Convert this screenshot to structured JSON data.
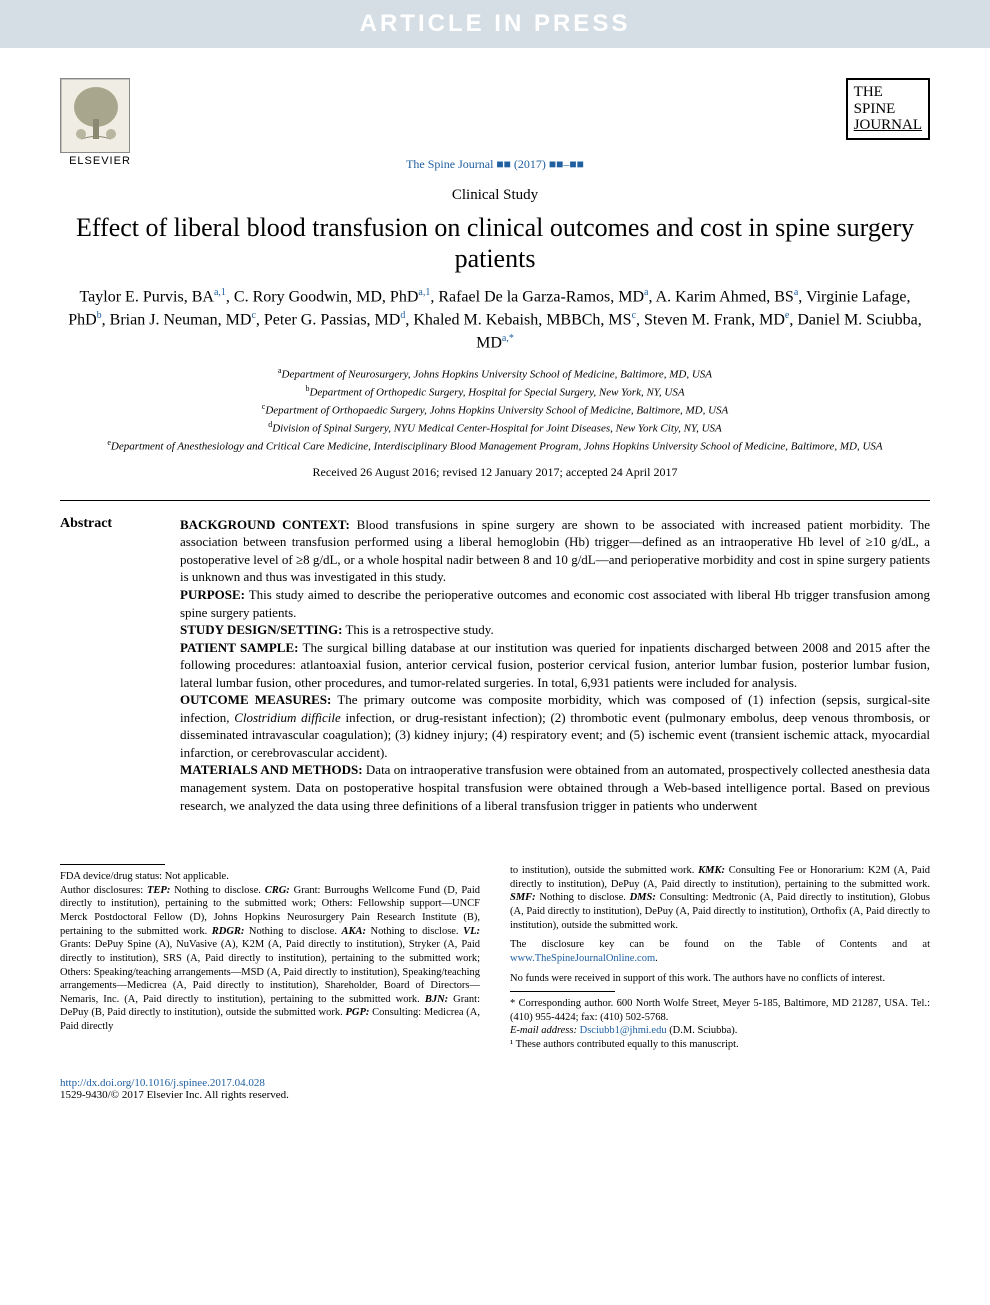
{
  "banner": "ARTICLE IN PRESS",
  "publisher": {
    "name": "ELSEVIER"
  },
  "journal": {
    "logo_lines": [
      "THE",
      "SPINE",
      "JOURNAL"
    ],
    "citation": "The Spine Journal ■■ (2017) ■■–■■"
  },
  "article_type": "Clinical Study",
  "title": "Effect of liberal blood transfusion on clinical outcomes and cost in spine surgery patients",
  "authors_html": "Taylor E. Purvis, BA<sup>a,1</sup>, C. Rory Goodwin, MD, PhD<sup>a,1</sup>, Rafael De la Garza-Ramos, MD<sup>a</sup>, A. Karim Ahmed, BS<sup>a</sup>, Virginie Lafage, PhD<sup>b</sup>, Brian J. Neuman, MD<sup>c</sup>, Peter G. Passias, MD<sup>d</sup>, Khaled M. Kebaish, MBBCh, MS<sup>c</sup>, Steven M. Frank, MD<sup>e</sup>, Daniel M. Sciubba, MD<sup>a,*</sup>",
  "affiliations": [
    {
      "sup": "a",
      "text": "Department of Neurosurgery, Johns Hopkins University School of Medicine, Baltimore, MD, USA"
    },
    {
      "sup": "b",
      "text": "Department of Orthopedic Surgery, Hospital for Special Surgery, New York, NY, USA"
    },
    {
      "sup": "c",
      "text": "Department of Orthopaedic Surgery, Johns Hopkins University School of Medicine, Baltimore, MD, USA"
    },
    {
      "sup": "d",
      "text": "Division of Spinal Surgery, NYU Medical Center-Hospital for Joint Diseases, New York City, NY, USA"
    },
    {
      "sup": "e",
      "text": "Department of Anesthesiology and Critical Care Medicine, Interdisciplinary Blood Management Program, Johns Hopkins University School of Medicine, Baltimore, MD, USA"
    }
  ],
  "dates": "Received 26 August 2016; revised 12 January 2017; accepted 24 April 2017",
  "abstract": {
    "label": "Abstract",
    "sections": [
      {
        "head": "BACKGROUND CONTEXT:",
        "body": "Blood transfusions in spine surgery are shown to be associated with increased patient morbidity. The association between transfusion performed using a liberal hemoglobin (Hb) trigger—defined as an intraoperative Hb level of ≥10 g/dL, a postoperative level of ≥8 g/dL, or a whole hospital nadir between 8 and 10 g/dL—and perioperative morbidity and cost in spine surgery patients is unknown and thus was investigated in this study."
      },
      {
        "head": "PURPOSE:",
        "body": "This study aimed to describe the perioperative outcomes and economic cost associated with liberal Hb trigger transfusion among spine surgery patients."
      },
      {
        "head": "STUDY DESIGN/SETTING:",
        "body": "This is a retrospective study."
      },
      {
        "head": "PATIENT SAMPLE:",
        "body": "The surgical billing database at our institution was queried for inpatients discharged between 2008 and 2015 after the following procedures: atlantoaxial fusion, anterior cervical fusion, posterior cervical fusion, anterior lumbar fusion, posterior lumbar fusion, lateral lumbar fusion, other procedures, and tumor-related surgeries. In total, 6,931 patients were included for analysis."
      },
      {
        "head": "OUTCOME MEASURES:",
        "body": "The primary outcome was composite morbidity, which was composed of (1) infection (sepsis, surgical-site infection, Clostridium difficile infection, or drug-resistant infection); (2) thrombotic event (pulmonary embolus, deep venous thrombosis, or disseminated intravascular coagulation); (3) kidney injury; (4) respiratory event; and (5) ischemic event (transient ischemic attack, myocardial infarction, or cerebrovascular accident)."
      },
      {
        "head": "MATERIALS AND METHODS:",
        "body": "Data on intraoperative transfusion were obtained from an automated, prospectively collected anesthesia data management system. Data on postoperative hospital transfusion were obtained through a Web-based intelligence portal. Based on previous research, we analyzed the data using three definitions of a liberal transfusion trigger in patients who underwent"
      }
    ]
  },
  "footer": {
    "fda": "FDA device/drug status: Not applicable.",
    "disclosures_left": "Author disclosures: TEP: Nothing to disclose. CRG: Grant: Burroughs Wellcome Fund (D, Paid directly to institution), pertaining to the submitted work; Others: Fellowship support—UNCF Merck Postdoctoral Fellow (D), Johns Hopkins Neurosurgery Pain Research Institute (B), pertaining to the submitted work. RDGR: Nothing to disclose. AKA: Nothing to disclose. VL: Grants: DePuy Spine (A), NuVasive (A), K2M (A, Paid directly to institution), Stryker (A, Paid directly to institution), SRS (A, Paid directly to institution), pertaining to the submitted work; Others: Speaking/teaching arrangements—MSD (A, Paid directly to institution), Speaking/teaching arrangements—Medicrea (A, Paid directly to institution), Shareholder, Board of Directors—Nemaris, Inc. (A, Paid directly to institution), pertaining to the submitted work. BJN: Grant: DePuy (B, Paid directly to institution), outside the submitted work. PGP: Consulting: Medicrea (A, Paid directly",
    "disclosures_right": "to institution), outside the submitted work. KMK: Consulting Fee or Honorarium: K2M (A, Paid directly to institution), DePuy (A, Paid directly to institution), pertaining to the submitted work. SMF: Nothing to disclose. DMS: Consulting: Medtronic (A, Paid directly to institution), Globus (A, Paid directly to institution), DePuy (A, Paid directly to institution), Orthofix (A, Paid directly to institution), outside the submitted work.",
    "disclosure_key": "The disclosure key can be found on the Table of Contents and at ",
    "disclosure_link": "www.TheSpineJournalOnline.com",
    "funding": "No funds were received in support of this work. The authors have no conflicts of interest.",
    "corresponding": "* Corresponding author. 600 North Wolfe Street, Meyer 5-185, Baltimore, MD 21287, USA. Tel.: (410) 955-4424; fax: (410) 502-5768.",
    "email_label": "E-mail address:",
    "email": "Dsciubb1@jhmi.edu",
    "email_author": "(D.M. Sciubba).",
    "equal_contrib": "¹ These authors contributed equally to this manuscript.",
    "doi": "http://dx.doi.org/10.1016/j.spinee.2017.04.028",
    "copyright": "1529-9430/© 2017 Elsevier Inc. All rights reserved."
  },
  "colors": {
    "banner_bg": "#d5dee4",
    "banner_text": "#ffffff",
    "link": "#2060a0",
    "text": "#000000"
  }
}
